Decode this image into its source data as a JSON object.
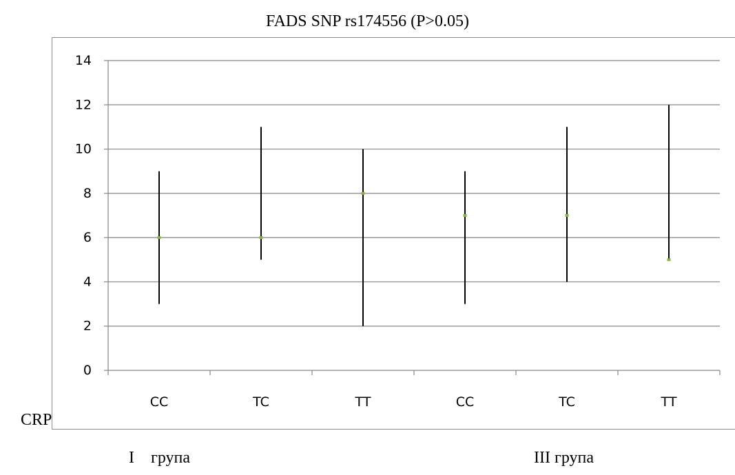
{
  "chart_data": {
    "type": "errorbar",
    "title": "FADS SNP rs174556 (P>0.05)",
    "ylabel": "CRP",
    "ylim": [
      0,
      14
    ],
    "yticks": [
      0,
      2,
      4,
      6,
      8,
      10,
      12,
      14
    ],
    "grid": true,
    "categories": [
      "CC",
      "TC",
      "TT",
      "CC",
      "TC",
      "TT"
    ],
    "groups": [
      {
        "label": "I    група",
        "categories": [
          "CC",
          "TC",
          "TT"
        ]
      },
      {
        "label": "III група",
        "categories": [
          "CC",
          "TC",
          "TT"
        ]
      }
    ],
    "series": [
      {
        "values": [
          6,
          6,
          8,
          7,
          7,
          5
        ],
        "high": [
          9,
          11,
          10,
          9,
          11,
          12
        ],
        "low": [
          3,
          5,
          2,
          3,
          4,
          5
        ]
      }
    ],
    "colors": {
      "marker": "#8db33a",
      "range": "#000000",
      "grid": "#868686"
    }
  }
}
